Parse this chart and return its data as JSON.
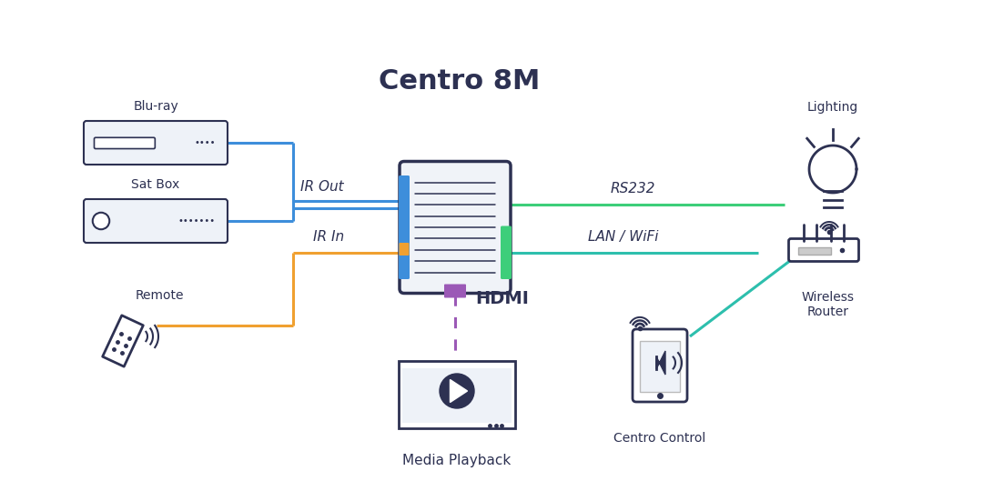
{
  "title": "Centro 8M",
  "dark_color": "#2d3152",
  "blue_color": "#3d8edb",
  "orange_color": "#f0a030",
  "green_color": "#3dce7a",
  "purple_color": "#9b59b6",
  "teal_color": "#2dbfad",
  "device_bg": "#eef2f8",
  "labels": {
    "bluray": "Blu-ray",
    "satbox": "Sat Box",
    "remote": "Remote",
    "ir_out": "IR Out",
    "ir_in": "IR In",
    "hdmi": "HDMI",
    "rs232": "RS232",
    "lan_wifi": "LAN / WiFi",
    "lighting": "Lighting",
    "wireless_router": "Wireless\nRouter",
    "centro_control": "Centro Control",
    "media_playback": "Media Playback"
  }
}
